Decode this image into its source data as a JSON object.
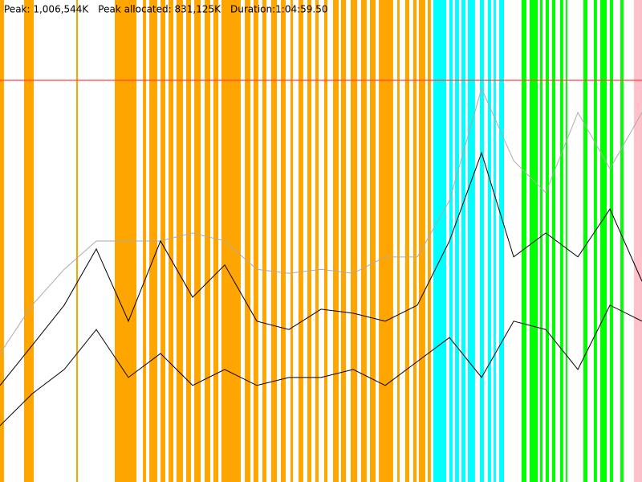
{
  "chart_data": {
    "type": "line",
    "header": [
      "Peak: 1,006,544K",
      "Peak allocated: 831,125K",
      "Duration:1:04:59.50"
    ],
    "peak": {
      "value": 1006544,
      "label": "Peak: 1,006,544K",
      "color": "#ff4040"
    },
    "xlim": [
      0,
      3899.5
    ],
    "ylim": [
      0,
      1207800
    ],
    "x": [
      0,
      195,
      390,
      585,
      780,
      975,
      1170,
      1365,
      1560,
      1755,
      1950,
      2145,
      2340,
      2535,
      2730,
      2925,
      3120,
      3315,
      3510,
      3705,
      3899.5
    ],
    "series": [
      {
        "color": "#aaaaaa",
        "values": [
          322000,
          443000,
          533000,
          604000,
          604000,
          604000,
          624000,
          604000,
          533000,
          523000,
          533000,
          523000,
          564000,
          564000,
          705000,
          986000,
          805000,
          725000,
          926000,
          785000,
          926000
        ]
      },
      {
        "color": "#000000",
        "values": [
          242000,
          342000,
          443000,
          584000,
          403000,
          604000,
          463000,
          544000,
          403000,
          382000,
          433000,
          423000,
          403000,
          443000,
          604000,
          825000,
          564000,
          624000,
          564000,
          684000,
          503000
        ]
      },
      {
        "color": "#000000",
        "values": [
          141000,
          221000,
          282000,
          382000,
          262000,
          322000,
          242000,
          282000,
          242000,
          262000,
          262000,
          282000,
          242000,
          302000,
          362000,
          262000,
          403000,
          382000,
          282000,
          443000,
          403000
        ]
      }
    ],
    "events": [
      {
        "color": "#ffa500",
        "spans": [
          [
            0,
            24
          ],
          [
            146,
            205
          ],
          [
            463,
            473
          ],
          [
            697,
            829
          ],
          [
            868,
            887
          ],
          [
            907,
            955
          ],
          [
            975,
            1004
          ],
          [
            1024,
            1053
          ],
          [
            1072,
            1111
          ],
          [
            1131,
            1160
          ],
          [
            1180,
            1219
          ],
          [
            1243,
            1277
          ],
          [
            1296,
            1326
          ],
          [
            1345,
            1462
          ],
          [
            1487,
            1521
          ],
          [
            1540,
            1569
          ],
          [
            1594,
            1618
          ],
          [
            1647,
            1682
          ],
          [
            1706,
            1735
          ],
          [
            1764,
            1779
          ],
          [
            1813,
            1842
          ],
          [
            1867,
            1891
          ],
          [
            1915,
            1935
          ],
          [
            1969,
            1989
          ],
          [
            2023,
            2057
          ],
          [
            2071,
            2101
          ],
          [
            2130,
            2169
          ],
          [
            2193,
            2227
          ],
          [
            2247,
            2281
          ],
          [
            2301,
            2388
          ],
          [
            2413,
            2427
          ],
          [
            2461,
            2486
          ],
          [
            2510,
            2530
          ],
          [
            2544,
            2583
          ],
          [
            2598,
            2617
          ]
        ]
      },
      {
        "color": "#00ffff",
        "spans": [
          [
            2632,
            2710
          ],
          [
            2729,
            2749
          ],
          [
            2764,
            2788
          ],
          [
            2803,
            2827
          ],
          [
            2841,
            2885
          ],
          [
            2915,
            2939
          ],
          [
            2963,
            2983
          ],
          [
            2998,
            3012
          ],
          [
            3032,
            3061
          ]
        ]
      },
      {
        "color": "#00ff00",
        "spans": [
          [
            3168,
            3197
          ],
          [
            3217,
            3266
          ],
          [
            3280,
            3295
          ],
          [
            3314,
            3334
          ],
          [
            3353,
            3373
          ],
          [
            3402,
            3421
          ],
          [
            3436,
            3446
          ],
          [
            3543,
            3568
          ],
          [
            3607,
            3626
          ],
          [
            3646,
            3685
          ],
          [
            3704,
            3724
          ],
          [
            3768,
            3787
          ]
        ]
      },
      {
        "color": "#ffc0cb",
        "spans": [
          [
            3850,
            3899.5
          ]
        ]
      }
    ]
  }
}
